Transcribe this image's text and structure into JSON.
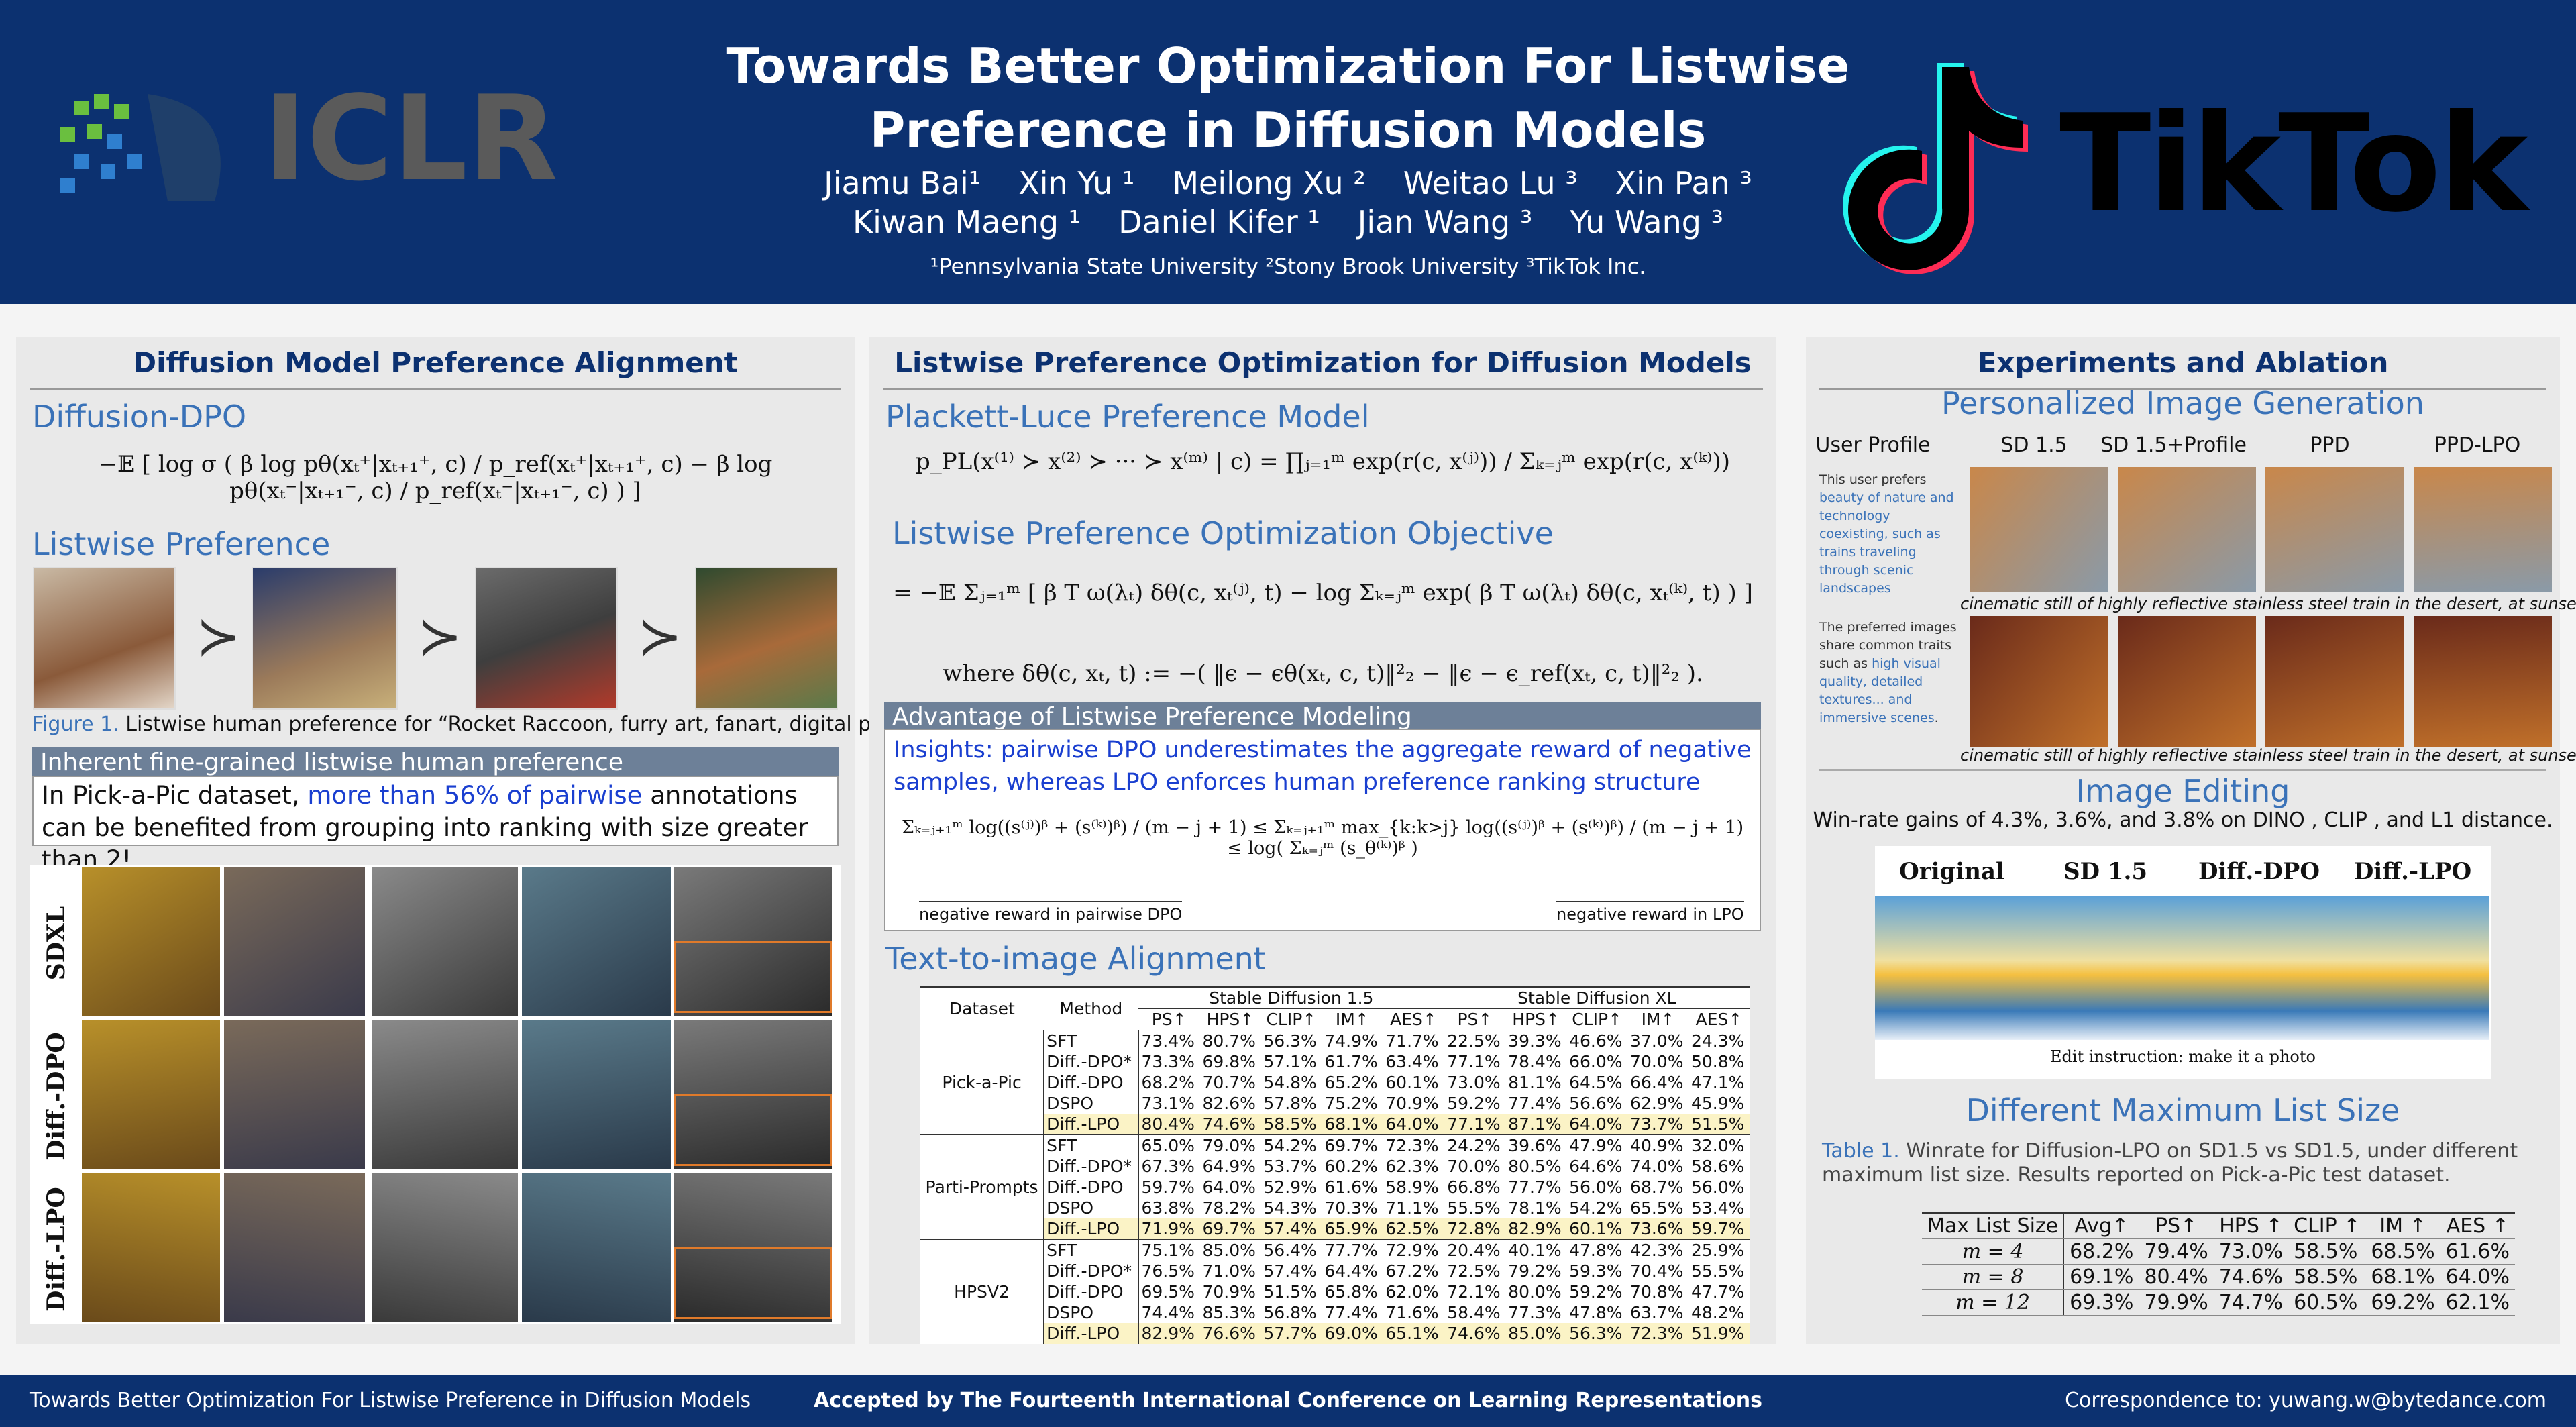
{
  "header": {
    "title_line1": "Towards Better Optimization For Listwise",
    "title_line2": "Preference in Diffusion Models",
    "authors_line1": [
      "Jiamu Bai¹",
      "Xin Yu ¹",
      "Meilong Xu ²",
      "Weitao Lu ³",
      "Xin Pan ³"
    ],
    "authors_line2": [
      "Kiwan Maeng ¹",
      "Daniel Kifer ¹",
      "Jian Wang ³",
      "Yu Wang ³"
    ],
    "affiliations": "¹Pennsylvania State University ²Stony Brook University ³TikTok Inc.",
    "logo_left": "ICLR",
    "logo_right": "TikTok"
  },
  "column1": {
    "title": "Diffusion Model Preference Alignment",
    "dpo_heading": "Diffusion-DPO",
    "dpo_formula": "−𝔼 [ log σ ( β log pθ(xₜ⁺|xₜ₊₁⁺, c) / p_ref(xₜ⁺|xₜ₊₁⁺, c) − β log pθ(xₜ⁻|xₜ₊₁⁻, c) / p_ref(xₜ⁻|xₜ₊₁⁻, c) ) ]",
    "listwise_heading": "Listwise Preference",
    "succ": "≻",
    "figure_label": "Figure 1.",
    "figure_caption": " Listwise human preference for “Rocket Raccoon, furry art, fanart, digital painting”.",
    "box_title": "Inherent fine-grained listwise human preference",
    "box_text_1": "In Pick-a-Pic dataset, ",
    "box_text_highlight": "more than 56% of pairwise",
    "box_text_2": " annotations can be benefited from grouping into ranking with size greater than 2!",
    "row_labels": [
      "SDXL",
      "Diff.-DPO",
      "Diff.-LPO"
    ]
  },
  "column2": {
    "title": "Listwise Preference Optimization for Diffusion Models",
    "pl_heading": "Plackett-Luce Preference Model",
    "pl_formula": "p_PL(x⁽¹⁾ ≻ x⁽²⁾ ≻ ··· ≻ x⁽ᵐ⁾ | c) = ∏ⱼ₌₁ᵐ exp(r(c, x⁽ʲ⁾)) / Σₖ₌ⱼᵐ exp(r(c, x⁽ᵏ⁾))",
    "lpo_heading": "Listwise Preference Optimization Objective",
    "lpo_formula": "= −𝔼 Σⱼ₌₁ᵐ [ β T ω(λₜ) δθ(c, xₜ⁽ʲ⁾, t) − log Σₖ₌ⱼᵐ exp( β T ω(λₜ) δθ(c, xₜ⁽ᵏ⁾, t) ) ]",
    "where_formula": "where δθ(c, xₜ, t) := −( ‖ϵ − ϵθ(xₜ, c, t)‖²₂ − ‖ϵ − ϵ_ref(xₜ, c, t)‖²₂ ).",
    "advantage_title": "Advantage of Listwise Preference Modeling",
    "insight": "Insights: pairwise DPO underestimates the aggregate reward of negative samples, whereas LPO enforces human preference ranking structure",
    "inequality": "Σₖ₌ⱼ₊₁ᵐ log((s⁽ʲ⁾)ᵝ + (s⁽ᵏ⁾)ᵝ) / (m − j + 1) ≤ Σₖ₌ⱼ₊₁ᵐ max_{k:k>j} log((s⁽ʲ⁾)ᵝ + (s⁽ᵏ⁾)ᵝ) / (m − j + 1) ≤ log( Σₖ₌ⱼᵐ (s_θ⁽ᵏ⁾)ᵝ )",
    "brace_left": "negative reward in pairwise DPO",
    "brace_right": "negative reward in LPO",
    "t2i_heading": "Text-to-image Alignment",
    "t2i_table": {
      "col_headers": [
        "Dataset",
        "Method"
      ],
      "group_headers": [
        "Stable Diffusion 1.5",
        "Stable Diffusion XL"
      ],
      "metric_headers": [
        "PS↑",
        "HPS↑",
        "CLIP↑",
        "IM↑",
        "AES↑",
        "PS↑",
        "HPS↑",
        "CLIP↑",
        "IM↑",
        "AES↑"
      ],
      "groups": [
        {
          "dataset": "Pick-a-Pic",
          "rows": [
            {
              "method": "SFT",
              "cells": [
                "73.4%",
                "80.7%",
                "56.3%",
                "74.9%",
                "71.7%",
                "22.5%",
                "39.3%",
                "46.6%",
                "37.0%",
                "24.3%"
              ]
            },
            {
              "method": "Diff.-DPO*",
              "cells": [
                "73.3%",
                "69.8%",
                "57.1%",
                "61.7%",
                "63.4%",
                "77.1%",
                "78.4%",
                "66.0%",
                "70.0%",
                "50.8%"
              ]
            },
            {
              "method": "Diff.-DPO",
              "cells": [
                "68.2%",
                "70.7%",
                "54.8%",
                "65.2%",
                "60.1%",
                "73.0%",
                "81.1%",
                "64.5%",
                "66.4%",
                "47.1%"
              ]
            },
            {
              "method": "DSPO",
              "cells": [
                "73.1%",
                "82.6%",
                "57.8%",
                "75.2%",
                "70.9%",
                "59.2%",
                "77.4%",
                "56.6%",
                "62.9%",
                "45.9%"
              ]
            },
            {
              "method": "Diff.-LPO",
              "cells": [
                "80.4%",
                "74.6%",
                "58.5%",
                "68.1%",
                "64.0%",
                "77.1%",
                "87.1%",
                "64.0%",
                "73.7%",
                "51.5%"
              ]
            }
          ]
        },
        {
          "dataset": "Parti-Prompts",
          "rows": [
            {
              "method": "SFT",
              "cells": [
                "65.0%",
                "79.0%",
                "54.2%",
                "69.7%",
                "72.3%",
                "24.2%",
                "39.6%",
                "47.9%",
                "40.9%",
                "32.0%"
              ]
            },
            {
              "method": "Diff.-DPO*",
              "cells": [
                "67.3%",
                "64.9%",
                "53.7%",
                "60.2%",
                "62.3%",
                "70.0%",
                "80.5%",
                "64.6%",
                "74.0%",
                "58.6%"
              ]
            },
            {
              "method": "Diff.-DPO",
              "cells": [
                "59.7%",
                "64.0%",
                "52.9%",
                "61.6%",
                "58.9%",
                "66.8%",
                "77.7%",
                "56.0%",
                "68.7%",
                "56.0%"
              ]
            },
            {
              "method": "DSPO",
              "cells": [
                "63.8%",
                "78.2%",
                "54.3%",
                "70.3%",
                "71.1%",
                "55.5%",
                "78.1%",
                "54.2%",
                "65.5%",
                "53.4%"
              ]
            },
            {
              "method": "Diff.-LPO",
              "cells": [
                "71.9%",
                "69.7%",
                "57.4%",
                "65.9%",
                "62.5%",
                "72.8%",
                "82.9%",
                "60.1%",
                "73.6%",
                "59.7%"
              ]
            }
          ]
        },
        {
          "dataset": "HPSV2",
          "rows": [
            {
              "method": "SFT",
              "cells": [
                "75.1%",
                "85.0%",
                "56.4%",
                "77.7%",
                "72.9%",
                "20.4%",
                "40.1%",
                "47.8%",
                "42.3%",
                "25.9%"
              ]
            },
            {
              "method": "Diff.-DPO*",
              "cells": [
                "76.5%",
                "71.0%",
                "57.4%",
                "64.4%",
                "67.2%",
                "72.5%",
                "79.2%",
                "59.3%",
                "70.4%",
                "55.5%"
              ]
            },
            {
              "method": "Diff.-DPO",
              "cells": [
                "69.5%",
                "70.9%",
                "51.5%",
                "65.8%",
                "62.0%",
                "72.1%",
                "80.0%",
                "59.2%",
                "70.8%",
                "47.7%"
              ]
            },
            {
              "method": "DSPO",
              "cells": [
                "74.4%",
                "85.3%",
                "56.8%",
                "77.4%",
                "71.6%",
                "58.4%",
                "77.3%",
                "47.8%",
                "63.7%",
                "48.2%"
              ]
            },
            {
              "method": "Diff.-LPO",
              "cells": [
                "82.9%",
                "76.6%",
                "57.7%",
                "69.0%",
                "65.1%",
                "74.6%",
                "85.0%",
                "56.3%",
                "72.3%",
                "51.9%"
              ]
            }
          ]
        }
      ]
    }
  },
  "column3": {
    "title": "Experiments and Ablation",
    "personalized_heading": "Personalized Image Generation",
    "personalized_headers": [
      "User Profile",
      "SD 1.5",
      "SD 1.5+Profile",
      "PPD",
      "PPD-LPO"
    ],
    "profile1_text": "This user prefers ",
    "profile1_highlight": "beauty of nature and technology coexisting, such as trains traveling through scenic landscapes",
    "caption1": "cinematic still of highly reflective stainless steel train in the desert, at sunset",
    "profile2_text": "The preferred images share common traits such as ",
    "profile2_highlight": "high visual quality, detailed textures... and immersive scenes",
    "profile2_end": ".",
    "caption2": "cinematic still of highly reflective stainless steel train in the desert, at sunset",
    "editing_heading": "Image Editing",
    "editing_text": "Win-rate gains of 4.3%, 3.6%, and 3.8% on DINO , CLIP , and L1 distance.",
    "editing_headers": [
      "Original",
      "SD 1.5",
      "Diff.-DPO",
      "Diff.-LPO"
    ],
    "edit_instruction": "Edit instruction: make it a photo",
    "list_heading": "Different Maximum List Size",
    "table_label": "Table 1.",
    "table_caption": " Winrate for Diffusion-LPO on SD1.5 vs SD1.5, under different maximum list size. Results reported on Pick-a-Pic test dataset.",
    "list_table": {
      "headers": [
        "Max List Size",
        "Avg↑",
        "PS↑",
        "HPS ↑",
        "CLIP ↑",
        "IM ↑",
        "AES ↑"
      ],
      "rows": [
        [
          "m = 4",
          "68.2%",
          "79.4%",
          "73.0%",
          "58.5%",
          "68.5%",
          "61.6%"
        ],
        [
          "m = 8",
          "69.1%",
          "80.4%",
          "74.6%",
          "58.5%",
          "68.1%",
          "64.0%"
        ],
        [
          "m = 12",
          "69.3%",
          "79.9%",
          "74.7%",
          "60.5%",
          "69.2%",
          "62.1%"
        ]
      ]
    }
  },
  "footer": {
    "left": "Towards Better Optimization For Listwise Preference in Diffusion Models",
    "center": "Accepted by The Fourteenth International Conference on Learning Representations",
    "right": "Correspondence to: yuwang.w@bytedance.com"
  }
}
